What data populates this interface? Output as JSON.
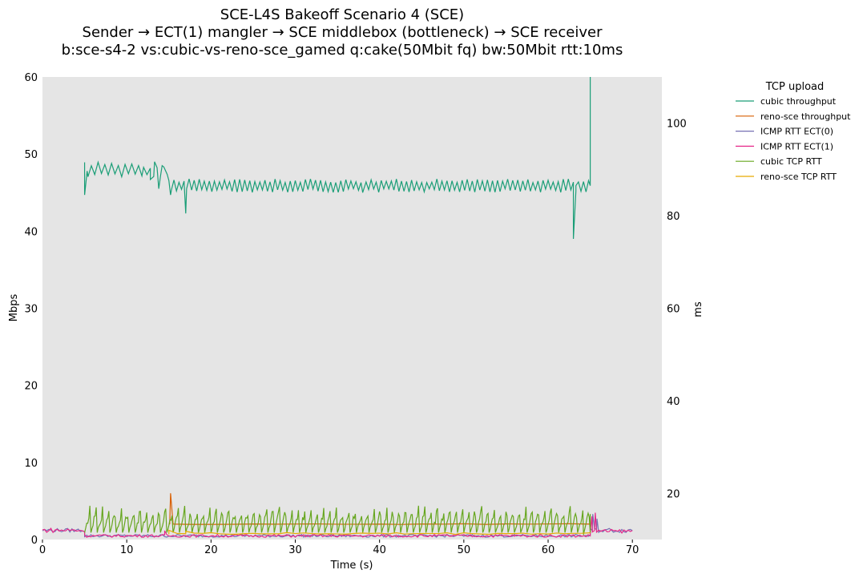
{
  "chart_data": {
    "type": "line",
    "title": [
      "SCE-L4S Bakeoff Scenario 4 (SCE)",
      "Sender → ECT(1) mangler → SCE middlebox (bottleneck) → SCE receiver",
      "b:sce-s4-2 vs:cubic-vs-reno-sce_gamed q:cake(50Mbit fq) bw:50Mbit rtt:10ms"
    ],
    "xlabel": "Time (s)",
    "ylabel_left": "Mbps",
    "ylabel_right": "ms",
    "xlim": [
      0,
      73.5
    ],
    "ylim_left": [
      0,
      60
    ],
    "ylim_right": [
      10,
      110
    ],
    "x_ticks": [
      0,
      10,
      20,
      30,
      40,
      50,
      60,
      70
    ],
    "y_ticks_left": [
      0,
      10,
      20,
      30,
      40,
      50,
      60
    ],
    "y_ticks_right": [
      20,
      40,
      60,
      80,
      100
    ],
    "background": "#e5e5e5",
    "grid": false,
    "legend": {
      "title": "TCP upload",
      "placement": "outside-top-right"
    },
    "series": [
      {
        "name": "cubic throughput",
        "axis": "left",
        "color": "#1b9e77",
        "segments": [
          {
            "x_start": 5.0,
            "x_end": 12.0,
            "base": 48.0,
            "amp": 0.9,
            "period": 0.8,
            "shape": "zigzag"
          },
          {
            "x_start": 12.0,
            "x_end": 15.0,
            "base": 47.8,
            "amp": 0.7,
            "period": 0.8,
            "shape": "zigzag"
          },
          {
            "x_start": 15.0,
            "x_end": 65.0,
            "base": 45.9,
            "amp": 0.8,
            "period": 0.6,
            "shape": "zigzag"
          }
        ],
        "points": [
          [
            5.0,
            44.7
          ],
          [
            5.3,
            47.8
          ],
          [
            12.8,
            46.7
          ],
          [
            13.3,
            49.0
          ],
          [
            13.8,
            45.5
          ],
          [
            14.2,
            48.5
          ],
          [
            15.2,
            44.7
          ],
          [
            17.0,
            42.3
          ],
          [
            38.0,
            45.0
          ],
          [
            63.0,
            39.0
          ],
          [
            63.3,
            45.9
          ],
          [
            65.0,
            45.9
          ],
          [
            65.0,
            60.0
          ]
        ]
      },
      {
        "name": "reno-sce throughput",
        "axis": "left",
        "color": "#d95f02",
        "segments": [
          {
            "x_start": 15.1,
            "x_end": 65.0,
            "base": 2.0,
            "amp": 0.3,
            "period": 5.0,
            "shape": "spikes"
          }
        ],
        "points": [
          [
            15.0,
            2.0
          ],
          [
            15.2,
            6.0
          ],
          [
            15.5,
            2.0
          ],
          [
            65.0,
            2.0
          ]
        ]
      },
      {
        "name": "ICMP RTT ECT(0)",
        "axis": "right",
        "color": "#7570b3",
        "segments": [
          {
            "x_start": 0.0,
            "x_end": 5.0,
            "base": 12.0,
            "amp": 0.4,
            "period": 0.5,
            "shape": "noise"
          },
          {
            "x_start": 5.0,
            "x_end": 65.0,
            "base": 10.8,
            "amp": 0.3,
            "period": 0.5,
            "shape": "noise"
          },
          {
            "x_start": 65.0,
            "x_end": 70.0,
            "base": 12.0,
            "amp": 0.5,
            "period": 0.5,
            "shape": "noise"
          }
        ],
        "points": [
          [
            65.3,
            15.5
          ],
          [
            65.8,
            14.5
          ]
        ]
      },
      {
        "name": "ICMP RTT ECT(1)",
        "axis": "right",
        "color": "#e7298a",
        "segments": [
          {
            "x_start": 0.0,
            "x_end": 5.0,
            "base": 12.0,
            "amp": 0.5,
            "period": 0.5,
            "shape": "noise"
          },
          {
            "x_start": 5.0,
            "x_end": 65.0,
            "base": 10.8,
            "amp": 0.3,
            "period": 0.5,
            "shape": "noise"
          },
          {
            "x_start": 65.0,
            "x_end": 70.0,
            "base": 11.8,
            "amp": 0.4,
            "period": 0.5,
            "shape": "noise"
          }
        ],
        "points": [
          [
            14.5,
            11.9
          ],
          [
            65.2,
            15.0
          ],
          [
            65.6,
            15.8
          ]
        ]
      },
      {
        "name": "cubic TCP RTT",
        "axis": "right",
        "color": "#66a61e",
        "segments": [
          {
            "x_start": 5.0,
            "x_end": 65.0,
            "base": 11.5,
            "amp": 7.0,
            "period": 0.75,
            "shape": "sawtooth"
          }
        ],
        "points": [
          [
            5.0,
            11.5
          ],
          [
            64.2,
            11.0
          ],
          [
            65.0,
            15.5
          ]
        ]
      },
      {
        "name": "reno-sce TCP RTT",
        "axis": "right",
        "color": "#e6ab02",
        "segments": [
          {
            "x_start": 15.0,
            "x_end": 65.0,
            "base": 11.3,
            "amp": 0.2,
            "period": 2.0,
            "shape": "noise"
          }
        ],
        "points": [
          [
            15.0,
            12.0
          ],
          [
            17.0,
            11.8
          ]
        ]
      }
    ]
  }
}
